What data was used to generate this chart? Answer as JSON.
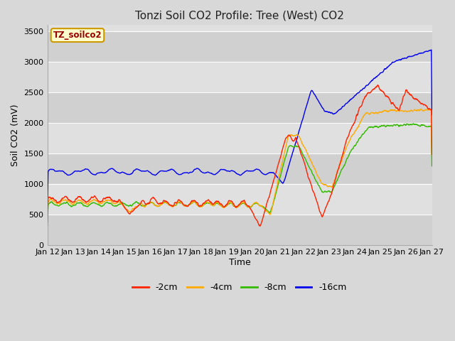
{
  "title": "Tonzi Soil CO2 Profile: Tree (West) CO2",
  "xlabel": "Time",
  "ylabel": "Soil CO2 (mV)",
  "ylim": [
    0,
    3600
  ],
  "yticks": [
    0,
    500,
    1000,
    1500,
    2000,
    2500,
    3000,
    3500
  ],
  "background_color": "#d8d8d8",
  "plot_bg_color": "#e0e0e0",
  "grid_color": "#ffffff",
  "band_color": "#d0d0d0",
  "line_colors": {
    "-2cm": "#ff2200",
    "-4cm": "#ffaa00",
    "-8cm": "#33bb00",
    "-16cm": "#0000ee"
  },
  "legend_label": "TZ_soilco2",
  "legend_box_facecolor": "#ffffcc",
  "legend_box_edgecolor": "#cc9900",
  "n_days": 15,
  "start_day": 12,
  "title_fontsize": 11,
  "axis_label_fontsize": 9,
  "tick_fontsize": 8,
  "legend_fontsize": 9
}
